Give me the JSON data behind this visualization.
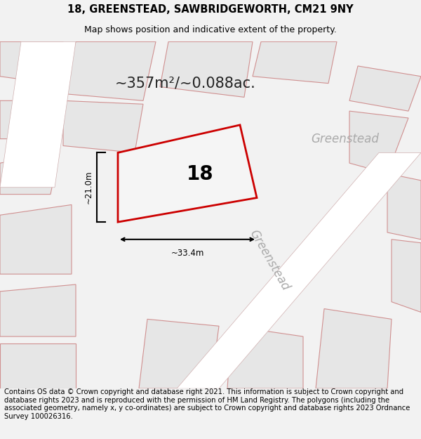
{
  "title": "18, GREENSTEAD, SAWBRIDGEWORTH, CM21 9NY",
  "subtitle": "Map shows position and indicative extent of the property.",
  "area_text": "~357m²/~0.088ac.",
  "number_label": "18",
  "dim_width": "~33.4m",
  "dim_height": "~21.0m",
  "street_label_diag": "Greenstead",
  "street_label_horiz": "Greenstead",
  "footer": "Contains OS data © Crown copyright and database right 2021. This information is subject to Crown copyright and database rights 2023 and is reproduced with the permission of HM Land Registry. The polygons (including the associated geometry, namely x, y co-ordinates) are subject to Crown copyright and database rights 2023 Ordnance Survey 100026316.",
  "bg_color": "#f2f2f2",
  "map_bg": "#ffffff",
  "property_fill": "#f5f5f5",
  "property_edge": "#cc0000",
  "neighbor_fill": "#e6e6e6",
  "neighbor_edge": "#d09090",
  "road_outline": "#d0b0b0",
  "title_fontsize": 10.5,
  "subtitle_fontsize": 9,
  "footer_fontsize": 7.2,
  "area_fontsize": 15,
  "number_fontsize": 20,
  "street_fontsize": 12
}
